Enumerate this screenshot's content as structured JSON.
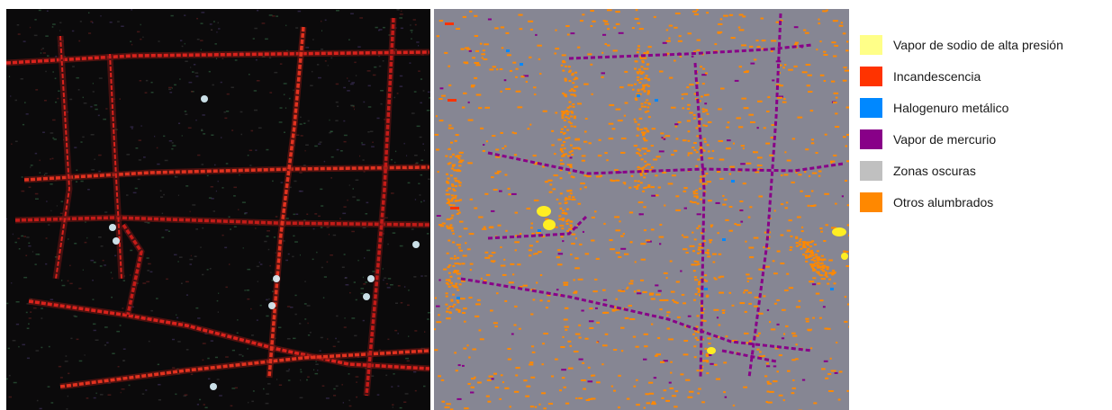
{
  "legend": {
    "items": [
      {
        "label": "Vapor de sodio de alta presión",
        "color": "#ffff88"
      },
      {
        "label": "Incandescencia",
        "color": "#ff3300"
      },
      {
        "label": "Halogenuro metálico",
        "color": "#0088ff"
      },
      {
        "label": "Vapor de mercurio",
        "color": "#880088"
      },
      {
        "label": "Zonas oscuras",
        "color": "#c0c0c0"
      },
      {
        "label": "Otros alumbrados",
        "color": "#ff8800"
      }
    ]
  },
  "images": {
    "left": {
      "description_icon": "night-satellite-rgb-image"
    },
    "right": {
      "description_icon": "lighting-classification-map",
      "background_color": "#868693"
    }
  }
}
